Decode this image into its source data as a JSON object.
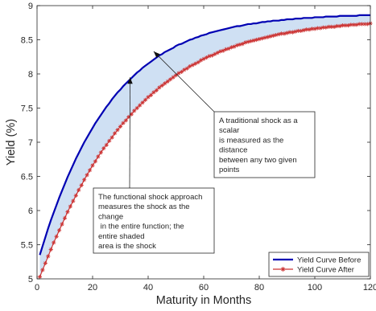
{
  "chart_data": {
    "type": "line",
    "title": "",
    "xlabel": "Maturity in Months",
    "ylabel": "Yield (%)",
    "xlim": [
      0,
      120
    ],
    "ylim": [
      5,
      9
    ],
    "xticks": [
      0,
      20,
      40,
      60,
      80,
      100,
      120
    ],
    "yticks": [
      5,
      5.5,
      6,
      6.5,
      7,
      7.5,
      8,
      8.5,
      9
    ],
    "grid": false,
    "legend_position": "bottom-right",
    "x": [
      1,
      2,
      3,
      4,
      5,
      6,
      7,
      8,
      9,
      10,
      11,
      12,
      13,
      14,
      15,
      16,
      17,
      18,
      19,
      20,
      21,
      22,
      23,
      24,
      25,
      26,
      27,
      28,
      29,
      30,
      31,
      32,
      33,
      34,
      35,
      36,
      37,
      38,
      39,
      40,
      41,
      42,
      43,
      44,
      45,
      46,
      47,
      48,
      49,
      50,
      51,
      52,
      53,
      54,
      55,
      56,
      57,
      58,
      59,
      60,
      61,
      62,
      63,
      64,
      65,
      66,
      67,
      68,
      69,
      70,
      71,
      72,
      73,
      74,
      75,
      76,
      77,
      78,
      79,
      80,
      81,
      82,
      83,
      84,
      85,
      86,
      87,
      88,
      89,
      90,
      91,
      92,
      93,
      94,
      95,
      96,
      97,
      98,
      99,
      100,
      101,
      102,
      103,
      104,
      105,
      106,
      107,
      108,
      109,
      110,
      111,
      112,
      113,
      114,
      115,
      116,
      117,
      118,
      119,
      120
    ],
    "series": [
      {
        "name": "Yield Curve Before",
        "color": "#0000b3",
        "values": [
          5.35,
          5.48,
          5.61,
          5.74,
          5.86,
          5.97,
          6.08,
          6.19,
          6.29,
          6.39,
          6.49,
          6.58,
          6.67,
          6.76,
          6.84,
          6.92,
          7.0,
          7.07,
          7.14,
          7.21,
          7.28,
          7.34,
          7.4,
          7.46,
          7.52,
          7.57,
          7.63,
          7.68,
          7.73,
          7.77,
          7.82,
          7.86,
          7.9,
          7.94,
          7.98,
          8.02,
          8.05,
          8.09,
          8.12,
          8.15,
          8.18,
          8.21,
          8.24,
          8.27,
          8.29,
          8.32,
          8.34,
          8.36,
          8.38,
          8.41,
          8.43,
          8.44,
          8.46,
          8.48,
          8.5,
          8.51,
          8.53,
          8.54,
          8.56,
          8.57,
          8.58,
          8.6,
          8.61,
          8.62,
          8.63,
          8.64,
          8.65,
          8.66,
          8.67,
          8.68,
          8.69,
          8.7,
          8.7,
          8.71,
          8.72,
          8.73,
          8.73,
          8.74,
          8.74,
          8.75,
          8.76,
          8.76,
          8.77,
          8.77,
          8.78,
          8.78,
          8.78,
          8.79,
          8.79,
          8.8,
          8.8,
          8.8,
          8.81,
          8.81,
          8.81,
          8.82,
          8.82,
          8.82,
          8.82,
          8.83,
          8.83,
          8.83,
          8.83,
          8.84,
          8.84,
          8.84,
          8.84,
          8.84,
          8.85,
          8.85,
          8.85,
          8.85,
          8.85,
          8.85,
          8.85,
          8.86,
          8.86,
          8.86,
          8.86,
          8.86
        ]
      },
      {
        "name": "Yield Curve After",
        "color": "#cc3333",
        "marker": "asterisk",
        "values": [
          5.03,
          5.13,
          5.23,
          5.33,
          5.43,
          5.53,
          5.62,
          5.71,
          5.8,
          5.89,
          5.98,
          6.06,
          6.14,
          6.22,
          6.3,
          6.37,
          6.45,
          6.52,
          6.59,
          6.66,
          6.72,
          6.79,
          6.85,
          6.91,
          6.96,
          7.02,
          7.07,
          7.13,
          7.18,
          7.23,
          7.28,
          7.32,
          7.37,
          7.41,
          7.46,
          7.5,
          7.54,
          7.58,
          7.62,
          7.66,
          7.69,
          7.73,
          7.76,
          7.8,
          7.83,
          7.86,
          7.89,
          7.92,
          7.95,
          7.98,
          8.01,
          8.03,
          8.06,
          8.08,
          8.11,
          8.13,
          8.15,
          8.17,
          8.2,
          8.22,
          8.24,
          8.26,
          8.27,
          8.29,
          8.31,
          8.33,
          8.34,
          8.36,
          8.37,
          8.39,
          8.4,
          8.42,
          8.43,
          8.44,
          8.46,
          8.47,
          8.48,
          8.49,
          8.5,
          8.51,
          8.52,
          8.53,
          8.54,
          8.55,
          8.56,
          8.57,
          8.58,
          8.59,
          8.59,
          8.6,
          8.61,
          8.61,
          8.62,
          8.63,
          8.63,
          8.64,
          8.65,
          8.65,
          8.66,
          8.66,
          8.67,
          8.67,
          8.68,
          8.68,
          8.69,
          8.69,
          8.69,
          8.7,
          8.7,
          8.71,
          8.71,
          8.71,
          8.72,
          8.72,
          8.72,
          8.73,
          8.73,
          8.73,
          8.73,
          8.74
        ]
      }
    ],
    "shaded_between": {
      "color": "#cfe0f3"
    },
    "annotations": [
      {
        "text": "A traditional shock as a\nscalar\nis measured as the\ndistance\nbetween any two given\npoints",
        "box_anchor": [
          75,
          7.3
        ],
        "arrow_tip": [
          42,
          8.33
        ]
      },
      {
        "text": "The functional shock approach\nmeasures the shock as the\nchange\n in the entire function; the\nentire shaded\narea is the shock",
        "box_anchor": [
          33,
          6.35
        ],
        "arrow_tip": [
          33.5,
          7.95
        ]
      }
    ]
  }
}
